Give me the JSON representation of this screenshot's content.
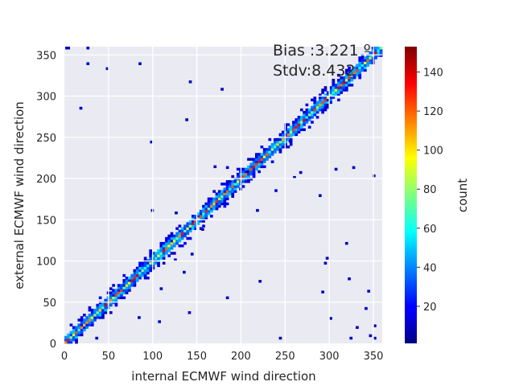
{
  "chart_data": {
    "type": "heatmap",
    "xlabel": "internal ECMWF wind direction",
    "ylabel": "external ECMWF wind direction",
    "xlim": [
      0,
      360
    ],
    "ylim": [
      0,
      360
    ],
    "x_ticks": [
      "0",
      "50",
      "100",
      "150",
      "200",
      "250",
      "300",
      "350"
    ],
    "y_ticks": [
      "0",
      "50",
      "100",
      "150",
      "200",
      "250",
      "300",
      "350"
    ],
    "grid": true,
    "bin_size_deg": 3,
    "annotations": [
      "Bias :3.221 º",
      "Stdv:8.432"
    ],
    "colorbar": {
      "label": "count",
      "range": [
        1,
        153
      ],
      "ticks": [
        "20",
        "40",
        "60",
        "80",
        "100",
        "120",
        "140"
      ],
      "colormap": "jet"
    },
    "diagonal_profile": {
      "description": "counts concentrated along y = x",
      "peak_count_on_diagonal": 150,
      "band_halfwidth_deg": 15
    },
    "scattered_cells": [
      [
        1,
        357
      ],
      [
        3,
        357
      ],
      [
        25,
        357
      ],
      [
        84,
        338
      ],
      [
        169,
        213
      ],
      [
        17,
        284
      ],
      [
        25,
        338
      ],
      [
        47,
        332
      ],
      [
        141,
        316
      ],
      [
        177,
        307
      ],
      [
        137,
        270
      ],
      [
        240,
        246
      ],
      [
        254,
        244
      ],
      [
        183,
        212
      ],
      [
        266,
        206
      ],
      [
        206,
        207
      ],
      [
        349,
        202
      ],
      [
        306,
        210
      ],
      [
        326,
        212
      ],
      [
        259,
        200
      ],
      [
        238,
        184
      ],
      [
        97,
        243
      ],
      [
        98,
        160
      ],
      [
        125,
        157
      ],
      [
        155,
        137
      ],
      [
        217,
        160
      ],
      [
        288,
        178
      ],
      [
        124,
        100
      ],
      [
        143,
        107
      ],
      [
        294,
        96
      ],
      [
        108,
        65
      ],
      [
        134,
        85
      ],
      [
        340,
        41
      ],
      [
        350,
        20
      ],
      [
        291,
        61
      ],
      [
        350,
        5
      ],
      [
        243,
        5
      ],
      [
        300,
        29
      ],
      [
        323,
        5
      ],
      [
        330,
        18
      ],
      [
        345,
        8
      ],
      [
        343,
        62
      ],
      [
        321,
        77
      ],
      [
        296,
        102
      ],
      [
        318,
        120
      ],
      [
        220,
        74
      ],
      [
        183,
        54
      ],
      [
        106,
        25
      ],
      [
        83,
        30
      ],
      [
        51,
        65
      ],
      [
        35,
        5
      ],
      [
        140,
        36
      ]
    ]
  }
}
